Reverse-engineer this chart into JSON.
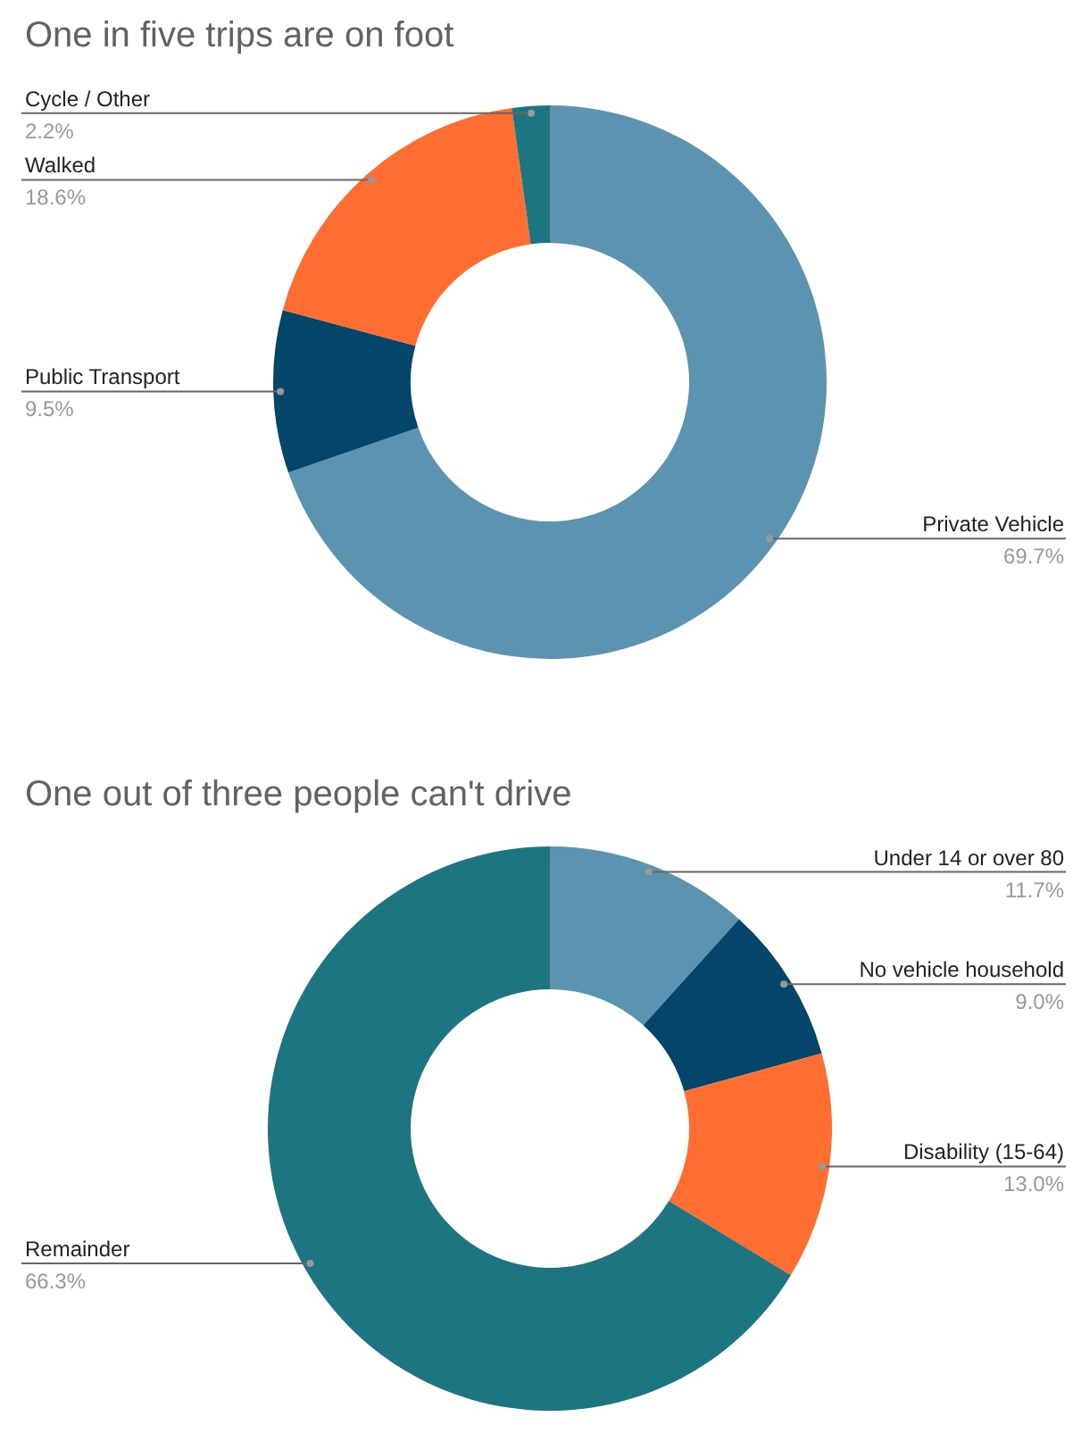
{
  "chart_data": [
    {
      "type": "donut",
      "title": "One in five trips are on foot",
      "categories": [
        "Private Vehicle",
        "Public Transport",
        "Walked",
        "Cycle / Other"
      ],
      "values": [
        69.7,
        9.5,
        18.6,
        2.2
      ],
      "colors": [
        "#5b93b0",
        "#03466a",
        "#ff6d31",
        "#1e7582"
      ],
      "value_labels": [
        "69.7%",
        "9.5%",
        "18.6%",
        "2.2%"
      ]
    },
    {
      "type": "donut",
      "title": "One out of three people can't drive",
      "categories": [
        "Under 14 or over 80",
        "No vehicle household",
        "Disability (15-64)",
        "Remainder"
      ],
      "values": [
        11.7,
        9.0,
        13.0,
        66.3
      ],
      "colors": [
        "#5b93b0",
        "#03466a",
        "#ff6d31",
        "#1e7582"
      ],
      "value_labels": [
        "11.7%",
        "9.0%",
        "13.0%",
        "66.3%"
      ]
    }
  ]
}
